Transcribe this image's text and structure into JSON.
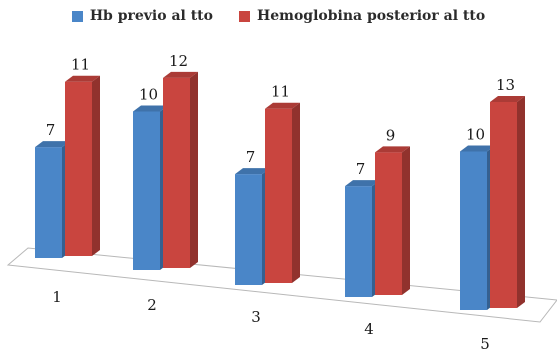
{
  "chart_data": {
    "type": "bar",
    "categories": [
      "1",
      "2",
      "3",
      "4",
      "5"
    ],
    "series": [
      {
        "name": "Hb previo al tto",
        "values": [
          7,
          10,
          7,
          7,
          10
        ],
        "color": "#4a86c8"
      },
      {
        "name": "Hemoglobina posterior al tto",
        "values": [
          11,
          12,
          11,
          9,
          13
        ],
        "color": "#c9453f"
      }
    ],
    "ylim": [
      0,
      13
    ],
    "grid": false,
    "legend_position": "top",
    "data_labels": true
  }
}
